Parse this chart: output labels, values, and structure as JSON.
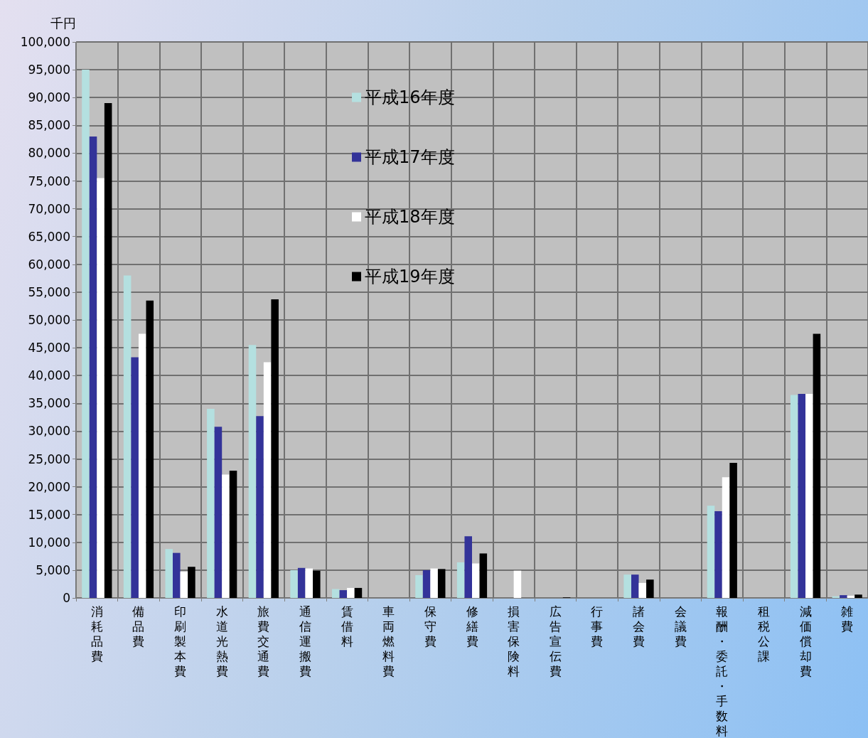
{
  "chart_data": {
    "type": "bar",
    "ylabel": "千円",
    "categories": [
      "消耗品費",
      "備品費",
      "印刷製本費",
      "水道光熱費",
      "旅費交通費",
      "通信運搬費",
      "賃借料",
      "車両燃料費",
      "保守費",
      "修繕費",
      "損害保険料",
      "広告宣伝費",
      "行事費",
      "諸会費",
      "会議費",
      "報酬・委託・手数料",
      "租税公課",
      "減価償却費",
      "雑費"
    ],
    "series": [
      {
        "name": "平成16年度",
        "color": "#b4e0e0",
        "values": [
          95000,
          58000,
          8800,
          34000,
          45500,
          5000,
          1600,
          0,
          4100,
          6400,
          0,
          0,
          0,
          4200,
          0,
          16600,
          0,
          36500,
          300
        ]
      },
      {
        "name": "平成17年度",
        "color": "#333399",
        "values": [
          83000,
          43300,
          8100,
          30800,
          32700,
          5400,
          1400,
          0,
          5000,
          11100,
          0,
          0,
          0,
          4200,
          0,
          15600,
          0,
          36700,
          500
        ]
      },
      {
        "name": "平成18年度",
        "color": "#ffffff",
        "values": [
          75500,
          47500,
          4700,
          22200,
          42400,
          5300,
          1800,
          0,
          5300,
          6200,
          4900,
          0,
          0,
          2700,
          0,
          21700,
          0,
          36700,
          400
        ]
      },
      {
        "name": "平成19年度",
        "color": "#000000",
        "values": [
          89000,
          53500,
          5600,
          22900,
          53700,
          4900,
          1800,
          0,
          5200,
          8000,
          0,
          100,
          0,
          3300,
          0,
          24300,
          0,
          47500,
          600
        ]
      }
    ],
    "ylim": [
      0,
      100000
    ],
    "yticks": [
      0,
      {
        "value": 5000,
        "label": "5,000"
      },
      {
        "value": 10000,
        "label": "10,000"
      },
      {
        "value": 15000,
        "label": "15,000"
      },
      {
        "value": 20000,
        "label": "20,000"
      },
      {
        "value": 25000,
        "label": "25,000"
      },
      {
        "value": 30000,
        "label": "30,000"
      },
      {
        "value": 35000,
        "label": "35,000"
      },
      {
        "value": 40000,
        "label": "40,000"
      },
      {
        "value": 45000,
        "label": "45,000"
      },
      {
        "value": 50000,
        "label": "50,000"
      },
      {
        "value": 55000,
        "label": "55,000"
      },
      {
        "value": 60000,
        "label": "60,000"
      },
      {
        "value": 65000,
        "label": "65,000"
      },
      {
        "value": 70000,
        "label": "70,000"
      },
      {
        "value": 75000,
        "label": "75,000"
      },
      {
        "value": 80000,
        "label": "80,000"
      },
      {
        "value": 85000,
        "label": "85,000"
      },
      {
        "value": 90000,
        "label": "90,000"
      },
      {
        "value": 95000,
        "label": "95,000"
      },
      {
        "value": 100000,
        "label": "100,000"
      }
    ],
    "grid": true,
    "legend": "top"
  }
}
